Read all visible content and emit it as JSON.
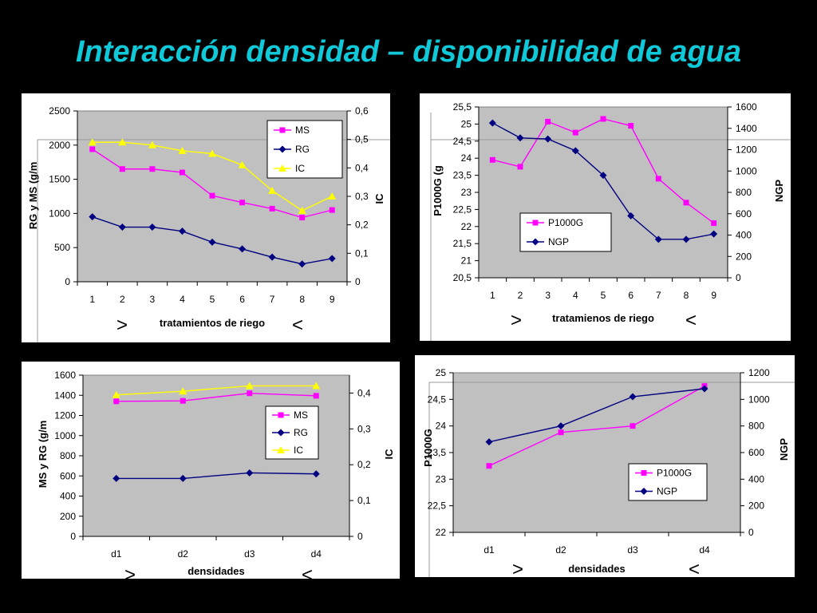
{
  "page": {
    "title": "Interacción densidad – disponibilidad de agua"
  },
  "chart_data": [
    {
      "type": "line",
      "categories": [
        "1",
        "2",
        "3",
        "4",
        "5",
        "6",
        "7",
        "8",
        "9"
      ],
      "xlabel": "tratamientos de riego",
      "ylabel": "RG y MS (g/m",
      "ylabel_right": "IC",
      "ylim": [
        0,
        2500
      ],
      "yticks": [
        "0",
        "500",
        "1000",
        "1500",
        "2000",
        "2500"
      ],
      "ylim_right": [
        0,
        0.6
      ],
      "yticks_right": [
        "0",
        "0,1",
        "0,2",
        "0,3",
        "0,4",
        "0,5",
        "0,6"
      ],
      "grid": false,
      "legend_position": "top-right",
      "arrows": [
        ">",
        "<"
      ],
      "series": [
        {
          "name": "MS",
          "axis": "left",
          "marker": "square",
          "color": "#ff00ff",
          "values": [
            1940,
            1650,
            1650,
            1600,
            1260,
            1160,
            1070,
            940,
            1050
          ]
        },
        {
          "name": "RG",
          "axis": "left",
          "marker": "diamond",
          "color": "#000080",
          "values": [
            950,
            800,
            800,
            740,
            580,
            480,
            360,
            260,
            340
          ]
        },
        {
          "name": "IC",
          "axis": "right",
          "marker": "triangle",
          "color": "#ffff00",
          "values": [
            0.49,
            0.49,
            0.48,
            0.46,
            0.45,
            0.41,
            0.32,
            0.25,
            0.3
          ]
        }
      ]
    },
    {
      "type": "line",
      "categories": [
        "1",
        "2",
        "3",
        "4",
        "5",
        "6",
        "7",
        "8",
        "9"
      ],
      "xlabel": "tratamienos de riego",
      "ylabel": "P1000G (g",
      "ylabel_right": "NGP",
      "ylim": [
        20.5,
        25.5
      ],
      "yticks": [
        "20,5",
        "21",
        "21,5",
        "22",
        "22,5",
        "23",
        "23,5",
        "24",
        "24,5",
        "25",
        "25,5"
      ],
      "ylim_right": [
        0,
        1600
      ],
      "yticks_right": [
        "0",
        "200",
        "400",
        "600",
        "800",
        "1000",
        "1200",
        "1400",
        "1600"
      ],
      "grid": false,
      "legend_position": "bottom-left",
      "arrows": [
        ">",
        "<"
      ],
      "series": [
        {
          "name": "P1000G",
          "axis": "left",
          "marker": "square",
          "color": "#ff00ff",
          "values": [
            23.95,
            23.75,
            25.07,
            24.75,
            25.15,
            24.95,
            23.4,
            22.7,
            22.1
          ]
        },
        {
          "name": "NGP",
          "axis": "right",
          "marker": "diamond",
          "color": "#000080",
          "values": [
            1450,
            1310,
            1300,
            1190,
            960,
            580,
            360,
            360,
            410
          ]
        }
      ]
    },
    {
      "type": "line",
      "categories": [
        "d1",
        "d2",
        "d3",
        "d4"
      ],
      "xlabel": "densidades",
      "ylabel": "MS y RG (g/m",
      "ylabel_right": "IC",
      "ylim": [
        0,
        1600
      ],
      "yticks": [
        "0",
        "200",
        "400",
        "600",
        "800",
        "1000",
        "1200",
        "1400",
        "1600"
      ],
      "ylim_right": [
        0,
        0.45
      ],
      "yticks_right": [
        "0",
        "0,1",
        "0,2",
        "0,3",
        "0,4"
      ],
      "grid": false,
      "legend_position": "right",
      "arrows": [
        ">",
        "<"
      ],
      "series": [
        {
          "name": "MS",
          "axis": "left",
          "marker": "square",
          "color": "#ff00ff",
          "values": [
            1340,
            1345,
            1420,
            1395
          ]
        },
        {
          "name": "RG",
          "axis": "left",
          "marker": "diamond",
          "color": "#000080",
          "values": [
            575,
            575,
            630,
            620
          ]
        },
        {
          "name": "IC",
          "axis": "right",
          "marker": "triangle",
          "color": "#ffff00",
          "values": [
            0.395,
            0.405,
            0.42,
            0.42
          ]
        }
      ]
    },
    {
      "type": "line",
      "categories": [
        "d1",
        "d2",
        "d3",
        "d4"
      ],
      "xlabel": "densidades",
      "ylabel": "P1000G",
      "ylabel_right": "NGP",
      "ylim": [
        22,
        25
      ],
      "yticks": [
        "22",
        "22,5",
        "23",
        "23,5",
        "24",
        "24,5",
        "25"
      ],
      "ylim_right": [
        0,
        1200
      ],
      "yticks_right": [
        "0",
        "200",
        "400",
        "600",
        "800",
        "1000",
        "1200"
      ],
      "grid": false,
      "legend_position": "bottom-right",
      "arrows": [
        ">",
        "<"
      ],
      "series": [
        {
          "name": "P1000G",
          "axis": "left",
          "marker": "square",
          "color": "#ff00ff",
          "values": [
            23.25,
            23.88,
            24.0,
            24.75
          ]
        },
        {
          "name": "NGP",
          "axis": "right",
          "marker": "diamond",
          "color": "#000080",
          "values": [
            680,
            800,
            1020,
            1080
          ]
        }
      ]
    }
  ]
}
